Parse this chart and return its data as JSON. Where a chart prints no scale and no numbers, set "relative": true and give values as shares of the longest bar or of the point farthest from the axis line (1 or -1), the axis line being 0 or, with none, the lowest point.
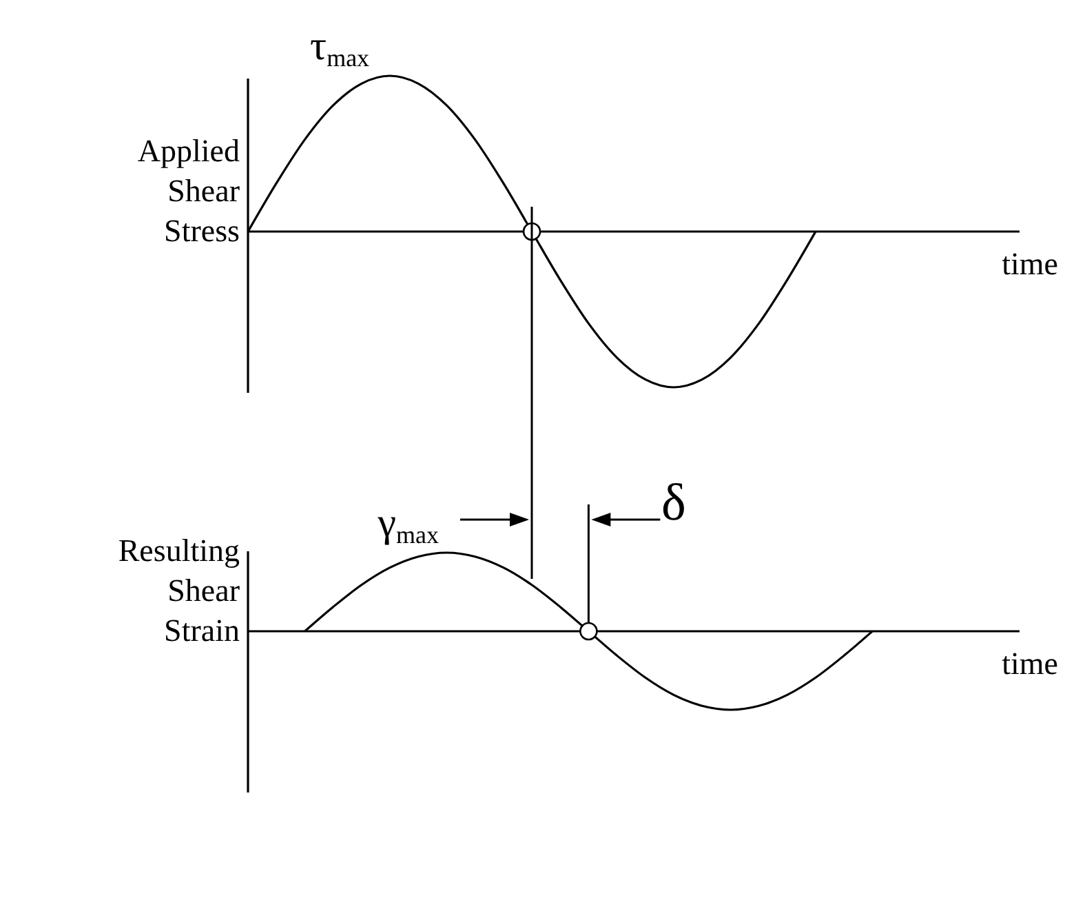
{
  "chart_data": [
    {
      "type": "line",
      "relative": true,
      "color": "#000000",
      "ylabel": "Applied Shear Stress",
      "xlabel": "time",
      "annotations": [
        "τ$_{max}$"
      ],
      "categories": [
        null,
        null,
        null,
        null,
        null,
        null,
        null,
        null,
        null,
        null,
        null,
        null,
        null,
        null,
        null,
        null,
        null,
        null,
        null,
        null,
        null,
        null,
        null,
        null,
        null,
        null,
        null,
        null
      ],
      "values": [
        0,
        0.31,
        0.59,
        0.81,
        0.95,
        1,
        0.95,
        0.81,
        0.59,
        0.31,
        0,
        -0.31,
        -0.59,
        -0.81,
        -0.95,
        -1,
        -0.95,
        -0.81,
        -0.59,
        -0.31,
        0,
        null,
        null,
        null,
        null,
        null,
        null,
        null
      ]
    },
    {
      "type": "line",
      "relative": true,
      "color": "#000000",
      "ylabel": "Resulting Shear Strain",
      "xlabel": "time",
      "annotations": [
        "γ$_{max}$",
        "δ"
      ],
      "categories": [
        null,
        null,
        null,
        null,
        null,
        null,
        null,
        null,
        null,
        null,
        null,
        null,
        null,
        null,
        null,
        null,
        null,
        null,
        null,
        null,
        null,
        null,
        null,
        null,
        null,
        null,
        null,
        null
      ],
      "values": [
        null,
        null,
        0,
        0.31,
        0.59,
        0.81,
        0.95,
        1,
        0.95,
        0.81,
        0.59,
        0.31,
        0,
        -0.31,
        -0.59,
        -0.81,
        -0.95,
        -1,
        -0.95,
        -0.81,
        -0.59,
        -0.31,
        0,
        null,
        null,
        null,
        null,
        null
      ]
    }
  ]
}
